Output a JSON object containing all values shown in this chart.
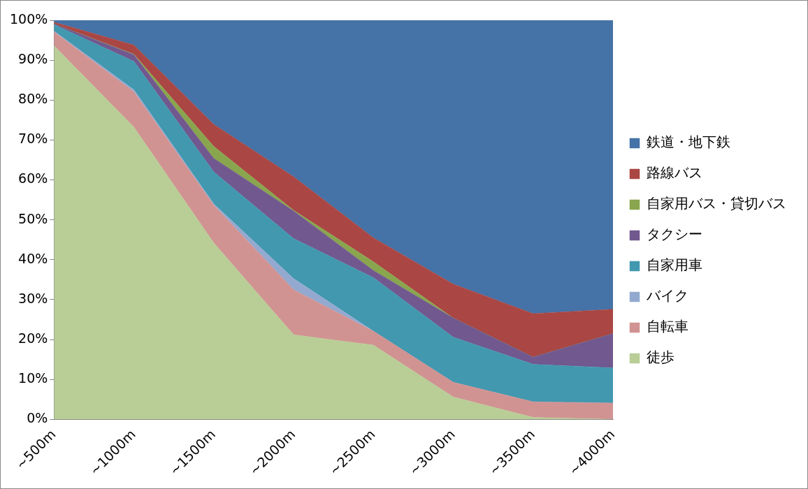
{
  "chart_data": {
    "type": "area",
    "stacked": true,
    "legend": "right",
    "grid": false,
    "marker": "none",
    "categories": [
      "~500m",
      "~1000m",
      "~1500m",
      "~2000m",
      "~2500m",
      "~3000m",
      "~3500m",
      "~4000m"
    ],
    "ylim": [
      0,
      100
    ],
    "yticks": [
      {
        "value": 0,
        "label": "0%"
      },
      {
        "value": 10,
        "label": "10%"
      },
      {
        "value": 20,
        "label": "20%"
      },
      {
        "value": 30,
        "label": "30%"
      },
      {
        "value": 40,
        "label": "40%"
      },
      {
        "value": 50,
        "label": "50%"
      },
      {
        "value": 60,
        "label": "60%"
      },
      {
        "value": 70,
        "label": "70%"
      },
      {
        "value": 80,
        "label": "80%"
      },
      {
        "value": 90,
        "label": "90%"
      },
      {
        "value": 100,
        "label": "100%"
      }
    ],
    "series": [
      {
        "name": "徒歩",
        "color": "#b9cd96",
        "values": [
          93.6,
          73.2,
          44.2,
          21.2,
          18.6,
          5.6,
          0.5,
          0
        ]
      },
      {
        "name": "自転車",
        "color": "#d19392",
        "values": [
          3.5,
          8.9,
          9.5,
          11.3,
          3.5,
          3.7,
          3.9,
          4.1
        ]
      },
      {
        "name": "バイク",
        "color": "#93a9cf",
        "values": [
          0.2,
          0.5,
          0.3,
          2.8,
          0,
          0,
          0,
          0
        ]
      },
      {
        "name": "自家用車",
        "color": "#4198af",
        "values": [
          1.6,
          7.1,
          8.0,
          10.0,
          13.4,
          11.3,
          9.4,
          8.8
        ]
      },
      {
        "name": "タクシー",
        "color": "#71588f",
        "values": [
          0.2,
          1.7,
          3.4,
          6.9,
          1.8,
          4.8,
          1.8,
          8.6
        ]
      },
      {
        "name": "自家用バス・貸切バス",
        "color": "#89a54e",
        "values": [
          0,
          0.1,
          3.0,
          0.2,
          2.2,
          0,
          0,
          0
        ]
      },
      {
        "name": "路線バス",
        "color": "#aa4643",
        "values": [
          0.4,
          2.3,
          5.5,
          8.4,
          6.0,
          8.5,
          10.9,
          6.1
        ]
      },
      {
        "name": "鉄道・地下鉄",
        "color": "#4572a7",
        "values": [
          0.5,
          6.2,
          26.1,
          39.2,
          54.5,
          66.1,
          73.5,
          72.4
        ]
      }
    ]
  }
}
